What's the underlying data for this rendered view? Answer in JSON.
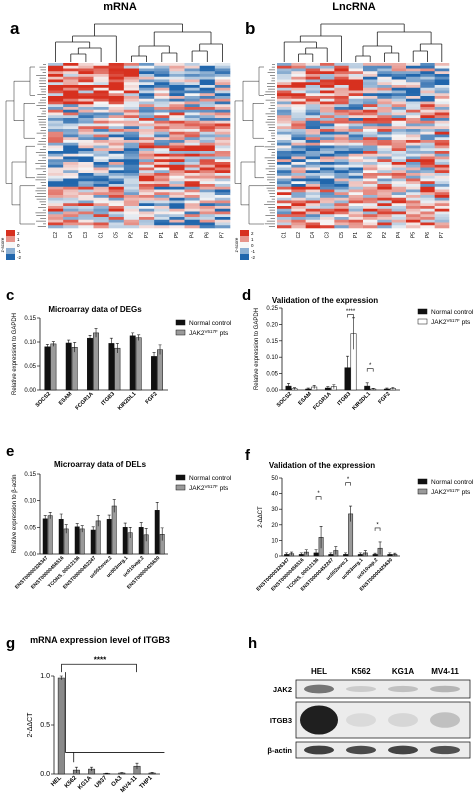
{
  "panels": {
    "a": {
      "letter": "a",
      "title": "mRNA",
      "scale_ticks": [
        "2",
        "1",
        "0",
        "-1",
        "-2"
      ],
      "scale_label": "z-score",
      "col_labels": [
        "C2",
        "C4",
        "C3",
        "C1",
        "C5",
        "P2",
        "P3",
        "P1",
        "P5",
        "P4",
        "P6",
        "P7"
      ]
    },
    "b": {
      "letter": "b",
      "title": "LncRNA",
      "scale_ticks": [
        "2",
        "1",
        "0",
        "-1",
        "-2"
      ],
      "scale_label": "z-score",
      "col_labels": [
        "C1",
        "C2",
        "C4",
        "C3",
        "C5",
        "P1",
        "P3",
        "P2",
        "P4",
        "P5",
        "P6",
        "P7"
      ]
    },
    "c": {
      "letter": "c",
      "title": "Microarray data of DEGs",
      "legend": [
        "Normal control",
        "JAK2V617F pts"
      ]
    },
    "d": {
      "letter": "d",
      "title": "Validation of the expression",
      "legend": [
        "Normal control",
        "JAK2V617F pts"
      ],
      "sig": [
        "****",
        "*"
      ]
    },
    "e": {
      "letter": "e",
      "title": "Microarray data of DELs",
      "legend": [
        "Normal control",
        "JAK2V617F pts"
      ]
    },
    "f": {
      "letter": "f",
      "title": "Validation of the expression",
      "legend": [
        "Normal control",
        "JAK2V617F pts"
      ],
      "sig": [
        "*",
        "*",
        "*"
      ]
    },
    "g": {
      "letter": "g",
      "title": "mRNA expression level of ITGB3",
      "sig": "****"
    },
    "h": {
      "letter": "h",
      "lanes": [
        "HEL",
        "K562",
        "KG1A",
        "MV4-11"
      ],
      "bands": [
        "JAK2",
        "ITGB3",
        "β-actin"
      ]
    }
  },
  "chart_data": [
    {
      "panel": "c",
      "type": "bar",
      "title": "Microarray data of DEGs",
      "xlabel": "",
      "ylabel": "Relative expression to GAPDH",
      "categories": [
        "SOCS2",
        "ESAM",
        "FCGR1A",
        "ITGB3",
        "KIR2DL1",
        "FGF2"
      ],
      "ylim": [
        0,
        0.15
      ],
      "yticks": [
        "0.00",
        "0.05",
        "0.10",
        "0.15"
      ],
      "series": [
        {
          "name": "Normal control",
          "values": [
            0.09,
            0.098,
            0.108,
            0.097,
            0.113,
            0.07
          ],
          "err": [
            0.005,
            0.006,
            0.006,
            0.011,
            0.006,
            0.008
          ],
          "color": "#111111"
        },
        {
          "name": "JAK2V617F pts",
          "values": [
            0.096,
            0.089,
            0.119,
            0.087,
            0.109,
            0.084
          ],
          "err": [
            0.005,
            0.01,
            0.009,
            0.01,
            0.006,
            0.01
          ],
          "color": "#9a9a9a"
        }
      ]
    },
    {
      "panel": "d",
      "type": "bar",
      "title": "Validation of the expression",
      "xlabel": "",
      "ylabel": "Relative expression to GAPDH",
      "categories": [
        "SOCS2",
        "ESAM",
        "FCGR1A",
        "ITGB3",
        "KIR2DL1",
        "FGF2"
      ],
      "ylim": [
        0,
        0.25
      ],
      "yticks": [
        "0.00",
        "0.05",
        "0.10",
        "0.15",
        "0.20",
        "0.25"
      ],
      "series": [
        {
          "name": "Normal control",
          "values": [
            0.012,
            0.003,
            0.006,
            0.068,
            0.012,
            0.003
          ],
          "err": [
            0.008,
            0.003,
            0.004,
            0.035,
            0.01,
            0.003
          ],
          "color": "#111111"
        },
        {
          "name": "JAK2V617F pts",
          "values": [
            0.004,
            0.009,
            0.01,
            0.172,
            0.003,
            0.005
          ],
          "err": [
            0.003,
            0.005,
            0.006,
            0.048,
            0.002,
            0.003
          ],
          "color": "#ffffff"
        }
      ]
    },
    {
      "panel": "e",
      "type": "bar",
      "title": "Microarray data of DELs",
      "xlabel": "",
      "ylabel": "Relative expression to β-actin",
      "categories": [
        "ENST00000326347",
        "ENST00000456516",
        "TCONS_00012136",
        "ENST00000452247",
        "uc002wvw.2",
        "uc003mrg.1",
        "uc010vap.2",
        "ENST00000425630"
      ],
      "ylim": [
        0,
        0.15
      ],
      "yticks": [
        "0.00",
        "0.05",
        "0.10",
        "0.15"
      ],
      "series": [
        {
          "name": "Normal control",
          "values": [
            0.066,
            0.065,
            0.051,
            0.045,
            0.065,
            0.05,
            0.05,
            0.082
          ],
          "err": [
            0.006,
            0.01,
            0.006,
            0.006,
            0.008,
            0.008,
            0.009,
            0.015
          ],
          "color": "#111111"
        },
        {
          "name": "JAK2V617F pts",
          "values": [
            0.072,
            0.047,
            0.047,
            0.062,
            0.09,
            0.04,
            0.036,
            0.037
          ],
          "err": [
            0.006,
            0.008,
            0.006,
            0.01,
            0.012,
            0.01,
            0.012,
            0.012
          ],
          "color": "#9a9a9a"
        }
      ]
    },
    {
      "panel": "f",
      "type": "bar",
      "title": "Validation of the expression",
      "xlabel": "",
      "ylabel": "2-ΔΔCT",
      "categories": [
        "ENST00000326347",
        "ENST00000456516",
        "TCONS_00012136",
        "ENST00000452247",
        "uc002wvw.2",
        "uc003mrg.1",
        "uc010vap.2",
        "ENST00000425630"
      ],
      "ylim": [
        0,
        50
      ],
      "yticks": [
        "0",
        "10",
        "20",
        "30",
        "40",
        "50"
      ],
      "series": [
        {
          "name": "Normal control",
          "values": [
            1,
            1,
            2,
            1,
            1,
            1,
            1,
            1
          ],
          "err": [
            1,
            1,
            2,
            1,
            1,
            1,
            0.8,
            1
          ],
          "color": "#111111"
        },
        {
          "name": "JAK2V617F pts",
          "values": [
            1.5,
            2.5,
            12,
            3.5,
            27,
            2,
            5,
            1
          ],
          "err": [
            1,
            1.5,
            7,
            2.5,
            5,
            1.5,
            4,
            0.8
          ],
          "color": "#9a9a9a"
        }
      ]
    },
    {
      "panel": "g",
      "type": "bar",
      "title": "mRNA expression level of ITGB3",
      "xlabel": "",
      "ylabel": "2-ΔΔCT",
      "categories": [
        "HEL",
        "K562",
        "KG1A",
        "U937",
        "OA3",
        "MV4-11",
        "THP1"
      ],
      "ylim": [
        0,
        1.0
      ],
      "yticks": [
        "0.0",
        "0.5",
        "1.0"
      ],
      "series": [
        {
          "name": "",
          "values": [
            0.98,
            0.04,
            0.05,
            0.005,
            0.01,
            0.08,
            0.01
          ],
          "err": [
            0.02,
            0.03,
            0.02,
            0.003,
            0.005,
            0.03,
            0.006
          ],
          "color": "#8a8a8a"
        }
      ]
    }
  ],
  "colors": {
    "heat_high": "#d7301f",
    "heat_mid": "#f7f7f7",
    "heat_low": "#2166ac"
  }
}
